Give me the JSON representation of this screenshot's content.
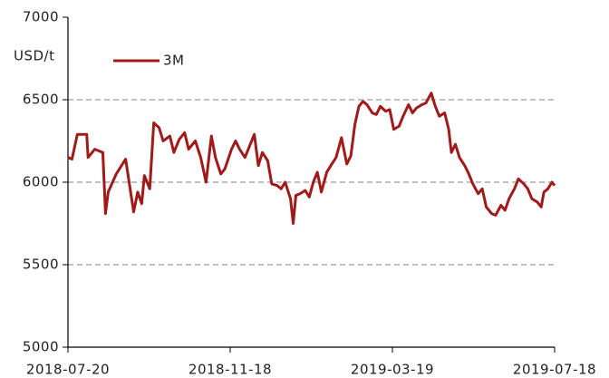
{
  "chart_data": {
    "type": "line",
    "y_axis_label": "USD/t",
    "x": [
      "2018-07-20",
      "2018-07-23",
      "2018-07-27",
      "2018-08-03",
      "2018-08-04",
      "2018-08-09",
      "2018-08-15",
      "2018-08-17",
      "2018-08-19",
      "2018-08-25",
      "2018-09-01",
      "2018-09-04",
      "2018-09-07",
      "2018-09-10",
      "2018-09-13",
      "2018-09-15",
      "2018-09-19",
      "2018-09-22",
      "2018-09-26",
      "2018-09-29",
      "2018-10-04",
      "2018-10-07",
      "2018-10-11",
      "2018-10-15",
      "2018-10-18",
      "2018-10-23",
      "2018-10-27",
      "2018-10-31",
      "2018-11-04",
      "2018-11-07",
      "2018-11-11",
      "2018-11-14",
      "2018-11-19",
      "2018-11-22",
      "2018-11-25",
      "2018-11-29",
      "2018-12-02",
      "2018-12-06",
      "2018-12-09",
      "2018-12-12",
      "2018-12-16",
      "2018-12-19",
      "2018-12-23",
      "2018-12-26",
      "2018-12-29",
      "2019-01-02",
      "2019-01-04",
      "2019-01-06",
      "2019-01-09",
      "2019-01-13",
      "2019-01-16",
      "2019-01-19",
      "2019-01-22",
      "2019-01-25",
      "2019-01-29",
      "2019-02-01",
      "2019-02-05",
      "2019-02-09",
      "2019-02-13",
      "2019-02-16",
      "2019-02-19",
      "2019-02-22",
      "2019-02-25",
      "2019-02-28",
      "2019-03-04",
      "2019-03-07",
      "2019-03-10",
      "2019-03-14",
      "2019-03-17",
      "2019-03-20",
      "2019-03-24",
      "2019-03-27",
      "2019-03-31",
      "2019-04-03",
      "2019-04-06",
      "2019-04-10",
      "2019-04-13",
      "2019-04-17",
      "2019-04-20",
      "2019-04-23",
      "2019-04-27",
      "2019-04-30",
      "2019-05-02",
      "2019-05-05",
      "2019-05-08",
      "2019-05-12",
      "2019-05-15",
      "2019-05-18",
      "2019-05-22",
      "2019-05-25",
      "2019-05-28",
      "2019-06-01",
      "2019-06-04",
      "2019-06-08",
      "2019-06-11",
      "2019-06-14",
      "2019-06-18",
      "2019-06-21",
      "2019-06-25",
      "2019-06-28",
      "2019-07-01",
      "2019-07-05",
      "2019-07-08",
      "2019-07-10",
      "2019-07-13",
      "2019-07-16",
      "2019-07-18"
    ],
    "series": [
      {
        "name": "3M",
        "color": "#a11a1a",
        "values": [
          6150,
          6140,
          6290,
          6290,
          6150,
          6200,
          6180,
          5810,
          5940,
          6050,
          6140,
          5980,
          5820,
          5940,
          5870,
          6040,
          5960,
          6360,
          6330,
          6250,
          6280,
          6180,
          6260,
          6300,
          6200,
          6250,
          6150,
          6000,
          6280,
          6150,
          6050,
          6080,
          6200,
          6250,
          6200,
          6150,
          6210,
          6290,
          6100,
          6180,
          6130,
          5990,
          5980,
          5960,
          6000,
          5900,
          5750,
          5920,
          5930,
          5950,
          5910,
          6000,
          6060,
          5940,
          6060,
          6100,
          6150,
          6270,
          6110,
          6160,
          6350,
          6460,
          6490,
          6470,
          6420,
          6410,
          6460,
          6430,
          6440,
          6320,
          6340,
          6400,
          6470,
          6420,
          6450,
          6470,
          6480,
          6540,
          6460,
          6400,
          6420,
          6320,
          6180,
          6230,
          6150,
          6100,
          6050,
          5990,
          5930,
          5960,
          5850,
          5810,
          5800,
          5860,
          5830,
          5900,
          5960,
          6020,
          5990,
          5960,
          5900,
          5880,
          5850,
          5940,
          5960,
          6000,
          5980
        ]
      }
    ],
    "xlim": [
      "2018-07-20",
      "2019-07-18"
    ],
    "xticks": [
      "2018-07-20",
      "2018-11-18",
      "2019-03-19",
      "2019-07-18"
    ],
    "ylim": [
      5000,
      7000
    ],
    "yticks": [
      5000,
      5500,
      6000,
      6500,
      7000
    ],
    "grid": true
  }
}
